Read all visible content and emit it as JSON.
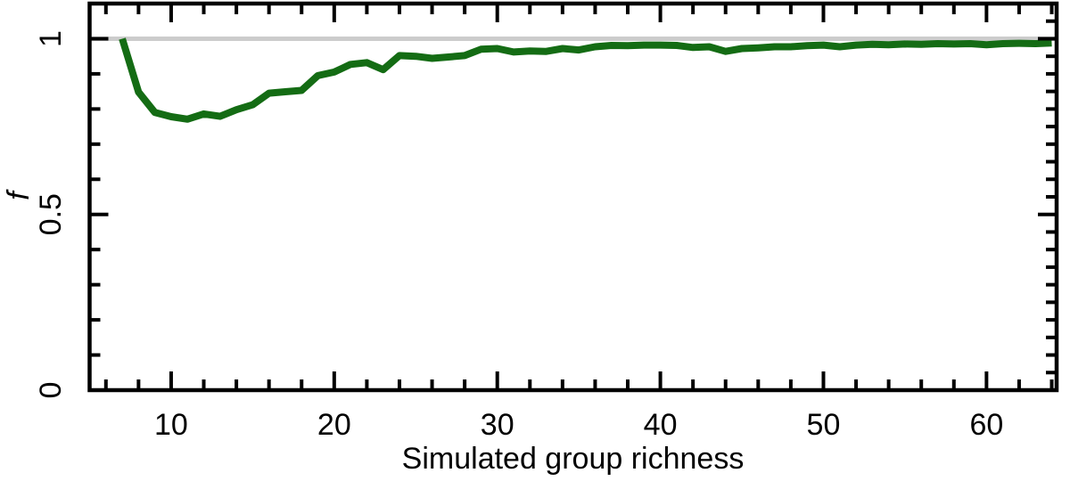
{
  "figure": {
    "background": "#ffffff",
    "axis_color": "#000000"
  },
  "chart_data": {
    "type": "line",
    "title": "",
    "xlabel": "Simulated group richness",
    "ylabel": "f",
    "xlim": [
      5,
      64.3
    ],
    "ylim": [
      0,
      1.1
    ],
    "grid": false,
    "legend": false,
    "x_major_ticks": [
      10,
      20,
      30,
      40,
      50,
      60
    ],
    "x_tick_labels": [
      "10",
      "20",
      "30",
      "40",
      "50",
      "60"
    ],
    "x_minor_tick_step": 2,
    "y_major_ticks": [
      0,
      0.5,
      1
    ],
    "y_tick_labels": [
      "0",
      "0.5",
      "1"
    ],
    "y_minor_tick_step_left": 0.1,
    "y_minor_tick_step_right": 0.05,
    "reference_line": {
      "y": 1.0,
      "color": "#cccccc"
    },
    "series": [
      {
        "color": "#146c14",
        "x": [
          7,
          8,
          9,
          10,
          11,
          12,
          13,
          14,
          15,
          16,
          17,
          18,
          19,
          20,
          21,
          22,
          23,
          24,
          25,
          26,
          27,
          28,
          29,
          30,
          31,
          32,
          33,
          34,
          35,
          36,
          37,
          38,
          39,
          40,
          41,
          42,
          43,
          44,
          45,
          46,
          47,
          48,
          49,
          50,
          51,
          52,
          53,
          54,
          55,
          56,
          57,
          58,
          59,
          60,
          61,
          62,
          63,
          64
        ],
        "y": [
          1.0,
          0.848,
          0.79,
          0.778,
          0.771,
          0.786,
          0.779,
          0.798,
          0.812,
          0.845,
          0.849,
          0.853,
          0.895,
          0.905,
          0.927,
          0.932,
          0.912,
          0.952,
          0.95,
          0.944,
          0.948,
          0.952,
          0.97,
          0.972,
          0.962,
          0.965,
          0.964,
          0.972,
          0.968,
          0.977,
          0.981,
          0.98,
          0.982,
          0.982,
          0.981,
          0.975,
          0.977,
          0.964,
          0.972,
          0.974,
          0.977,
          0.977,
          0.98,
          0.982,
          0.977,
          0.982,
          0.984,
          0.983,
          0.985,
          0.984,
          0.986,
          0.985,
          0.986,
          0.983,
          0.986,
          0.987,
          0.986,
          0.988
        ]
      }
    ]
  }
}
